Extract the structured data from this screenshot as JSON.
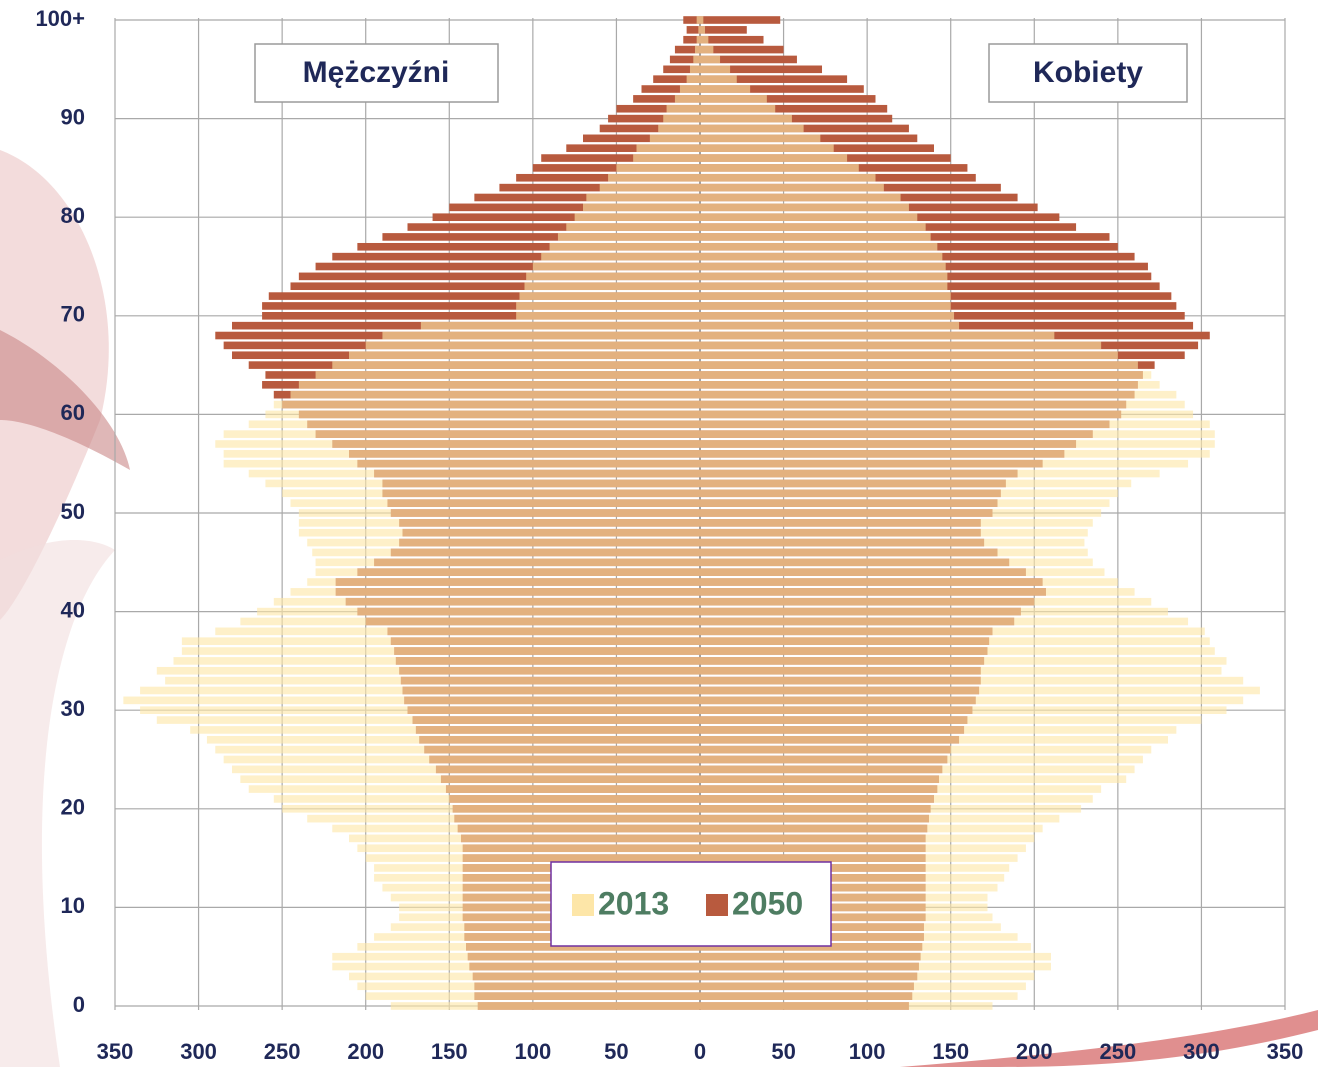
{
  "chart_data": {
    "type": "population-pyramid",
    "left_label": "Mężczyźni",
    "right_label": "Kobiety",
    "categories": [
      "0",
      null,
      null,
      null,
      null,
      null,
      null,
      null,
      null,
      null,
      "10",
      null,
      null,
      null,
      null,
      null,
      null,
      null,
      null,
      null,
      "20",
      null,
      null,
      null,
      null,
      null,
      null,
      null,
      null,
      null,
      "30",
      null,
      null,
      null,
      null,
      null,
      null,
      null,
      null,
      null,
      "40",
      null,
      null,
      null,
      null,
      null,
      null,
      null,
      null,
      null,
      "50",
      null,
      null,
      null,
      null,
      null,
      null,
      null,
      null,
      null,
      "60",
      null,
      null,
      null,
      null,
      null,
      null,
      null,
      null,
      null,
      "70",
      null,
      null,
      null,
      null,
      null,
      null,
      null,
      null,
      null,
      "80",
      null,
      null,
      null,
      null,
      null,
      null,
      null,
      null,
      null,
      "90",
      null,
      null,
      null,
      null,
      null,
      null,
      null,
      null,
      null,
      "100+"
    ],
    "series": [
      {
        "name": "2013",
        "color": "#fde6a8",
        "men": [
          185,
          200,
          205,
          210,
          220,
          220,
          205,
          195,
          185,
          180,
          180,
          185,
          190,
          195,
          195,
          200,
          205,
          210,
          220,
          235,
          250,
          255,
          270,
          275,
          280,
          285,
          290,
          295,
          305,
          325,
          335,
          345,
          335,
          320,
          325,
          315,
          310,
          310,
          290,
          275,
          265,
          255,
          245,
          235,
          230,
          230,
          232,
          235,
          240,
          240,
          240,
          245,
          250,
          260,
          270,
          285,
          285,
          290,
          285,
          270,
          260,
          255,
          245,
          240,
          230,
          220,
          210,
          200,
          190,
          167,
          110,
          110,
          108,
          105,
          104,
          100,
          95,
          90,
          85,
          80,
          75,
          70,
          68,
          60,
          55,
          50,
          40,
          38,
          30,
          25,
          22,
          20,
          15,
          12,
          8,
          6,
          4,
          3,
          2,
          1,
          2
        ],
        "women": [
          175,
          190,
          195,
          200,
          210,
          210,
          198,
          190,
          180,
          175,
          172,
          172,
          178,
          182,
          185,
          190,
          195,
          200,
          205,
          215,
          228,
          235,
          240,
          255,
          260,
          265,
          270,
          280,
          285,
          300,
          315,
          325,
          335,
          325,
          312,
          315,
          308,
          305,
          302,
          292,
          280,
          270,
          260,
          250,
          242,
          235,
          232,
          230,
          232,
          235,
          240,
          245,
          250,
          258,
          275,
          292,
          305,
          308,
          308,
          305,
          295,
          290,
          285,
          275,
          270,
          262,
          250,
          240,
          212,
          155,
          152,
          150,
          150,
          148,
          148,
          147,
          145,
          142,
          138,
          135,
          130,
          125,
          120,
          110,
          105,
          95,
          88,
          80,
          72,
          62,
          55,
          45,
          40,
          30,
          22,
          18,
          12,
          8,
          5,
          3,
          2
        ]
      },
      {
        "name": "2050",
        "color": "#b85a3e",
        "men": [
          133,
          135,
          135,
          136,
          138,
          139,
          140,
          141,
          141,
          142,
          142,
          142,
          142,
          142,
          142,
          142,
          142,
          143,
          145,
          147,
          148,
          150,
          152,
          155,
          158,
          162,
          165,
          168,
          170,
          172,
          175,
          177,
          178,
          179,
          180,
          182,
          183,
          185,
          187,
          200,
          205,
          212,
          218,
          218,
          205,
          195,
          185,
          180,
          178,
          180,
          185,
          187,
          190,
          190,
          195,
          205,
          210,
          220,
          230,
          235,
          240,
          250,
          255,
          262,
          260,
          270,
          280,
          285,
          290,
          280,
          262,
          262,
          258,
          245,
          240,
          230,
          220,
          205,
          190,
          175,
          160,
          150,
          135,
          120,
          110,
          100,
          95,
          80,
          70,
          60,
          55,
          50,
          40,
          35,
          28,
          22,
          18,
          15,
          10,
          8,
          10
        ],
        "women": [
          125,
          127,
          128,
          130,
          131,
          132,
          133,
          134,
          134,
          135,
          135,
          135,
          135,
          135,
          135,
          135,
          135,
          135,
          136,
          137,
          138,
          140,
          142,
          143,
          145,
          148,
          150,
          155,
          158,
          160,
          163,
          165,
          167,
          168,
          168,
          170,
          172,
          173,
          175,
          188,
          192,
          200,
          207,
          205,
          195,
          185,
          178,
          170,
          168,
          168,
          175,
          178,
          180,
          183,
          190,
          205,
          218,
          225,
          235,
          245,
          252,
          255,
          260,
          262,
          265,
          272,
          290,
          298,
          305,
          295,
          290,
          285,
          282,
          275,
          270,
          268,
          260,
          250,
          245,
          225,
          215,
          202,
          190,
          180,
          165,
          160,
          150,
          140,
          130,
          125,
          115,
          112,
          105,
          98,
          88,
          73,
          58,
          50,
          38,
          28,
          48
        ]
      }
    ],
    "xlim": [
      -350,
      350
    ],
    "xticks": [
      {
        "value": -350,
        "label": "350"
      },
      {
        "value": -300,
        "label": "300"
      },
      {
        "value": -250,
        "label": "250"
      },
      {
        "value": -200,
        "label": "200"
      },
      {
        "value": -150,
        "label": "150"
      },
      {
        "value": -100,
        "label": "100"
      },
      {
        "value": -50,
        "label": "50"
      },
      0,
      50,
      100,
      150,
      200,
      250,
      300,
      350
    ],
    "grid": true
  }
}
